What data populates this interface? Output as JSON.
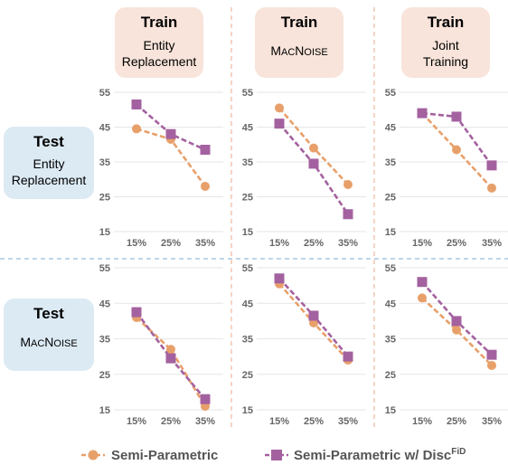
{
  "colors": {
    "semi_parametric": "#E8A06A",
    "semi_parametric_disc": "#A4619F",
    "train_box": "#F8E4DA",
    "test_box": "#DCEAF4",
    "divider_vertical": "#F2C6B0",
    "divider_horizontal": "#A9C8E0",
    "grid": "#E6E6E6"
  },
  "train_headers": [
    {
      "title": "Train",
      "line1": "Entity",
      "line2": "Replacement",
      "smallcaps": false
    },
    {
      "title": "Train",
      "line1": "MacNoise",
      "line2": "",
      "smallcaps": true
    },
    {
      "title": "Train",
      "line1": "Joint",
      "line2": "Training",
      "smallcaps": false
    }
  ],
  "test_headers": [
    {
      "title": "Test",
      "line1": "Entity",
      "line2": "Replacement",
      "smallcaps": false
    },
    {
      "title": "Test",
      "line1": "MacNoise",
      "line2": "",
      "smallcaps": true
    }
  ],
  "legend": {
    "semi_parametric": "Semi-Parametric",
    "semi_parametric_disc": "Semi-Parametric w/ Disc",
    "disc_superscript": "FiD"
  },
  "chart_data": [
    {
      "type": "line",
      "train": "Entity Replacement",
      "test": "Entity Replacement",
      "categories": [
        "15%",
        "25%",
        "35%"
      ],
      "yticks": [
        55,
        45,
        35,
        25,
        15
      ],
      "ylim": [
        15,
        55
      ],
      "series": [
        {
          "name": "Semi-Parametric",
          "values": [
            44.5,
            41.5,
            28
          ]
        },
        {
          "name": "Semi-Parametric w/ Disc FiD",
          "values": [
            51.5,
            43,
            38.5
          ]
        }
      ]
    },
    {
      "type": "line",
      "train": "MacNoise",
      "test": "Entity Replacement",
      "categories": [
        "15%",
        "25%",
        "35%"
      ],
      "yticks": [
        55,
        45,
        35,
        25,
        15
      ],
      "ylim": [
        15,
        55
      ],
      "series": [
        {
          "name": "Semi-Parametric",
          "values": [
            50.5,
            39,
            28.5
          ]
        },
        {
          "name": "Semi-Parametric w/ Disc FiD",
          "values": [
            46,
            34.5,
            20
          ]
        }
      ]
    },
    {
      "type": "line",
      "train": "Joint Training",
      "test": "Entity Replacement",
      "categories": [
        "15%",
        "25%",
        "35%"
      ],
      "yticks": [
        55,
        45,
        35,
        25,
        15
      ],
      "ylim": [
        15,
        55
      ],
      "series": [
        {
          "name": "Semi-Parametric",
          "values": [
            49,
            38.5,
            27.5
          ]
        },
        {
          "name": "Semi-Parametric w/ Disc FiD",
          "values": [
            49,
            48,
            34
          ]
        }
      ]
    },
    {
      "type": "line",
      "train": "Entity Replacement",
      "test": "MacNoise",
      "categories": [
        "15%",
        "25%",
        "35%"
      ],
      "yticks": [
        55,
        45,
        35,
        25,
        15
      ],
      "ylim": [
        15,
        55
      ],
      "series": [
        {
          "name": "Semi-Parametric",
          "values": [
            41,
            32,
            16
          ]
        },
        {
          "name": "Semi-Parametric w/ Disc FiD",
          "values": [
            42.5,
            29.5,
            18
          ]
        }
      ]
    },
    {
      "type": "line",
      "train": "MacNoise",
      "test": "MacNoise",
      "categories": [
        "15%",
        "25%",
        "35%"
      ],
      "yticks": [
        55,
        45,
        35,
        25,
        15
      ],
      "ylim": [
        15,
        55
      ],
      "series": [
        {
          "name": "Semi-Parametric",
          "values": [
            50.5,
            39.5,
            29
          ]
        },
        {
          "name": "Semi-Parametric w/ Disc FiD",
          "values": [
            52,
            41.5,
            30
          ]
        }
      ]
    },
    {
      "type": "line",
      "train": "Joint Training",
      "test": "MacNoise",
      "categories": [
        "15%",
        "25%",
        "35%"
      ],
      "yticks": [
        55,
        45,
        35,
        25,
        15
      ],
      "ylim": [
        15,
        55
      ],
      "series": [
        {
          "name": "Semi-Parametric",
          "values": [
            46.5,
            37.5,
            27.5
          ]
        },
        {
          "name": "Semi-Parametric w/ Disc FiD",
          "values": [
            51,
            40,
            30.5
          ]
        }
      ]
    }
  ]
}
